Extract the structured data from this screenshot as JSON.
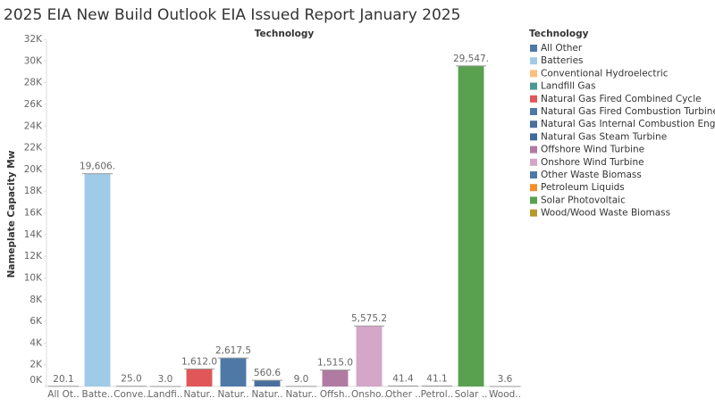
{
  "chart_data": {
    "type": "bar",
    "title": "2025 EIA New Build Outlook EIA Issued Report January 2025",
    "header": "Technology",
    "y_label": "Nameplate Capacity Mw",
    "categories": [
      "All Ot..",
      "Batte..",
      "Conve..",
      "Landfi..",
      "Natur..",
      "Natur..",
      "Natur..",
      "Natur..",
      "Offsh..",
      "Onsho..",
      "Other ..",
      "Petrol..",
      "Solar ..",
      "Wood.."
    ],
    "values": [
      20.1,
      19606,
      25.0,
      3.0,
      1612.0,
      2617.5,
      560.6,
      9.0,
      1515.0,
      5575.2,
      41.4,
      41.1,
      29547,
      3.6
    ],
    "value_labels": [
      "20.1",
      "19,606.",
      "25.0",
      "3.0",
      "1,612.0",
      "2,617.5",
      "560.6",
      "9.0",
      "1,515.0",
      "5,575.2",
      "41.4",
      "41.1",
      "29,547.",
      "3.6"
    ],
    "colors": [
      "#4e79a7",
      "#a0cbe8",
      "#ffbe7d",
      "#499894",
      "#e15759",
      "#4e79a7",
      "#4a6f9e",
      "#3f6a99",
      "#b07aa1",
      "#d4a6c8",
      "#4e79a7",
      "#f28e2b",
      "#59a14f",
      "#b6992d"
    ],
    "legend": {
      "title": "Technology",
      "items": [
        "All Other",
        "Batteries",
        "Conventional Hydroelectric",
        "Landfill Gas",
        "Natural Gas Fired Combined Cycle",
        "Natural Gas Fired Combustion Turbine",
        "Natural Gas Internal Combustion Engine",
        "Natural Gas Steam Turbine",
        "Offshore Wind Turbine",
        "Onshore Wind Turbine",
        "Other Waste Biomass",
        "Petroleum Liquids",
        "Solar Photovoltaic",
        "Wood/Wood Waste Biomass"
      ]
    },
    "ylim": [
      0,
      32000
    ],
    "yticks": [
      {
        "value": 0,
        "label": "0K"
      },
      {
        "value": 2000,
        "label": "2K"
      },
      {
        "value": 4000,
        "label": "4K"
      },
      {
        "value": 6000,
        "label": "6K"
      },
      {
        "value": 8000,
        "label": "8K"
      },
      {
        "value": 10000,
        "label": "10K"
      },
      {
        "value": 12000,
        "label": "12K"
      },
      {
        "value": 14000,
        "label": "14K"
      },
      {
        "value": 16000,
        "label": "16K"
      },
      {
        "value": 18000,
        "label": "18K"
      },
      {
        "value": 20000,
        "label": "20K"
      },
      {
        "value": 22000,
        "label": "22K"
      },
      {
        "value": 24000,
        "label": "24K"
      },
      {
        "value": 26000,
        "label": "26K"
      },
      {
        "value": 28000,
        "label": "28K"
      },
      {
        "value": 30000,
        "label": "30K"
      },
      {
        "value": 32000,
        "label": "32K"
      }
    ]
  }
}
